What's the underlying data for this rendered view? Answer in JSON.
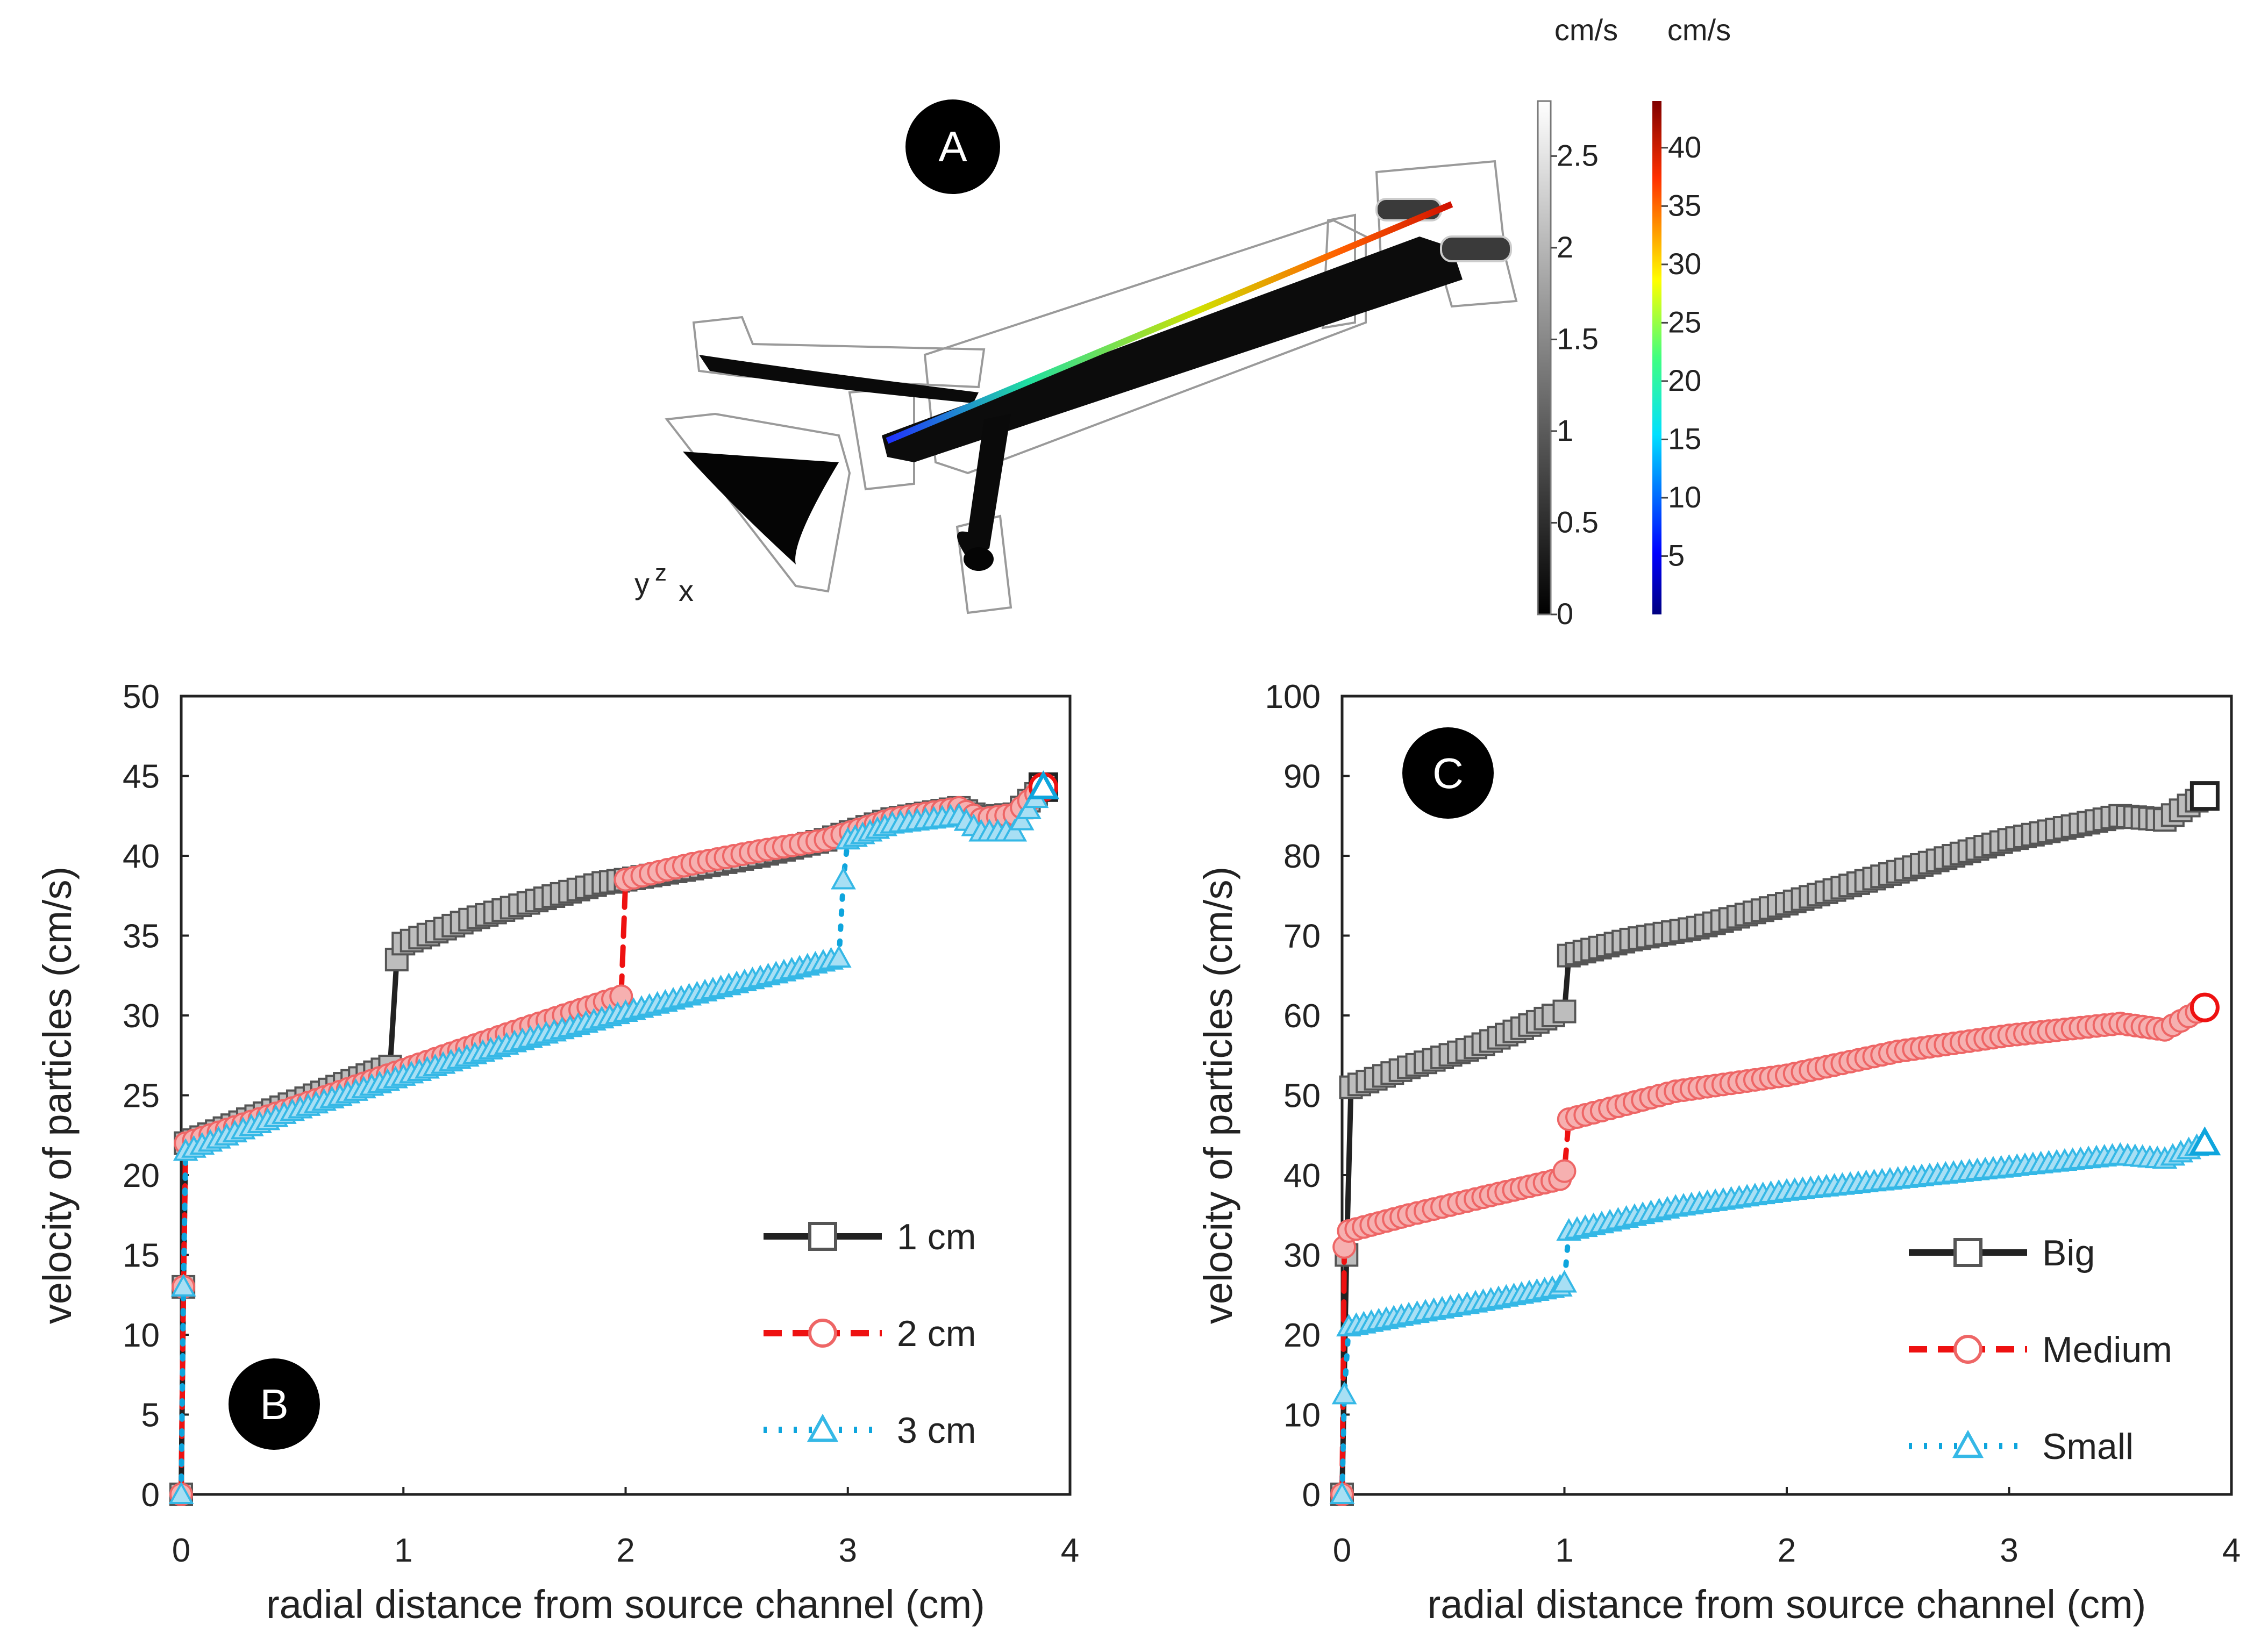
{
  "figure": {
    "panels": [
      "A",
      "B",
      "C"
    ]
  },
  "colors": {
    "big": "#222222",
    "medium": "#ee4444",
    "small": "#1aaee0",
    "ink": "#222222",
    "badge": "#000000"
  },
  "panel_a": {
    "label": "A",
    "axes_glyph": {
      "y": "y",
      "z": "z",
      "x": "x"
    },
    "colorbar_gray": {
      "unit": "cm/s",
      "ticks": [
        "2.5",
        "2",
        "1.5",
        "1",
        "0.5",
        "0"
      ]
    },
    "colorbar_jet": {
      "unit": "cm/s",
      "ticks": [
        "40",
        "35",
        "30",
        "25",
        "20",
        "15",
        "10",
        "5"
      ]
    }
  },
  "chart_data": [
    {
      "type": "line",
      "panel": "B",
      "xlabel": "radial distance from source channel  (cm)",
      "ylabel": "velocity of particles (cm/s)",
      "xlim": [
        0,
        4
      ],
      "ylim": [
        0,
        50
      ],
      "xticks": [
        "0",
        "1",
        "2",
        "3",
        "4"
      ],
      "yticks": [
        "0",
        "5",
        "10",
        "15",
        "20",
        "25",
        "30",
        "35",
        "40",
        "45",
        "50"
      ],
      "legend_position": "bottom-right",
      "series": [
        {
          "name": "1 cm",
          "marker": "square",
          "style": "solid",
          "x": [
            0,
            0.01,
            0.02,
            0.3,
            0.6,
            0.94,
            0.97,
            1.0,
            1.3,
            1.6,
            1.9,
            2.0,
            2.3,
            2.6,
            2.9,
            3.2,
            3.5,
            3.6,
            3.75,
            3.88
          ],
          "y": [
            0,
            13,
            22,
            23.5,
            25,
            26.8,
            33.5,
            34.5,
            36,
            37.2,
            38.3,
            38.5,
            39.2,
            40,
            41,
            42.3,
            43,
            42.4,
            42.6,
            44.3
          ]
        },
        {
          "name": "2 cm",
          "marker": "circle",
          "style": "dashed",
          "x": [
            0,
            0.01,
            0.02,
            0.5,
            1.0,
            1.5,
            1.98,
            2.0,
            2.3,
            2.6,
            2.9,
            3.2,
            3.5,
            3.6,
            3.75,
            3.88
          ],
          "y": [
            0,
            13,
            22,
            24.2,
            26.6,
            29,
            31.2,
            38.5,
            39.5,
            40.3,
            41,
            42.3,
            43,
            42.3,
            42.6,
            44.3
          ]
        },
        {
          "name": "3 cm",
          "marker": "triangle",
          "style": "dotted",
          "x": [
            0,
            0.01,
            0.02,
            0.5,
            1.0,
            1.5,
            2.0,
            2.5,
            2.96,
            2.98,
            3.0,
            3.2,
            3.5,
            3.6,
            3.75,
            3.88
          ],
          "y": [
            0,
            13,
            21.5,
            24,
            26.2,
            28.3,
            30.2,
            32,
            33.6,
            38.5,
            41,
            42,
            42.5,
            41.5,
            41.5,
            44.3
          ]
        }
      ]
    },
    {
      "type": "line",
      "panel": "C",
      "xlabel": "radial distance from source channel  (cm)",
      "ylabel": "velocity of particles (cm/s)",
      "xlim": [
        0,
        4
      ],
      "ylim": [
        0,
        100
      ],
      "xticks": [
        "0",
        "1",
        "2",
        "3",
        "4"
      ],
      "yticks": [
        "0",
        "10",
        "20",
        "30",
        "40",
        "50",
        "60",
        "70",
        "80",
        "90",
        "100"
      ],
      "legend_position": "bottom-right",
      "series": [
        {
          "name": "Big",
          "marker": "square",
          "style": "solid",
          "x": [
            0,
            0.02,
            0.04,
            0.3,
            0.6,
            0.95,
            1.0,
            1.02,
            1.3,
            1.6,
            2.0,
            2.5,
            3.0,
            3.5,
            3.7,
            3.88
          ],
          "y": [
            0,
            30,
            51,
            53.5,
            56,
            60,
            60.5,
            67.5,
            69.5,
            71,
            74,
            78,
            82,
            85,
            84.5,
            87.5
          ]
        },
        {
          "name": "Medium",
          "marker": "circle",
          "style": "dashed",
          "x": [
            0,
            0.01,
            0.03,
            0.3,
            0.6,
            0.98,
            1.0,
            1.02,
            1.5,
            2.0,
            2.5,
            3.0,
            3.5,
            3.7,
            3.88
          ],
          "y": [
            0,
            31,
            33,
            35,
            37,
            39.5,
            40.5,
            47,
            50.5,
            52.5,
            55.5,
            57.5,
            59,
            58.2,
            61
          ]
        },
        {
          "name": "Small",
          "marker": "triangle",
          "style": "dotted",
          "x": [
            0,
            0.01,
            0.03,
            0.3,
            0.6,
            0.98,
            1.0,
            1.02,
            1.5,
            2.0,
            2.5,
            3.0,
            3.5,
            3.7,
            3.88
          ],
          "y": [
            0,
            12.5,
            21,
            22.5,
            24,
            26,
            26.5,
            33,
            36,
            38,
            39.5,
            41,
            42.5,
            42,
            44
          ]
        }
      ]
    }
  ]
}
